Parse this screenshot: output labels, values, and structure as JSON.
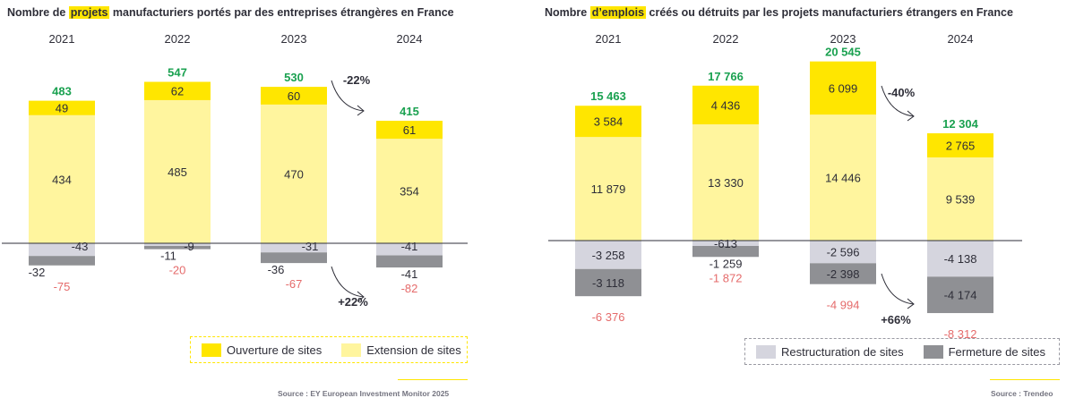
{
  "colors": {
    "ouverture": "#ffe600",
    "extension": "#fff59e",
    "restructuration": "#d5d5de",
    "fermeture": "#8f9094",
    "positive_total": "#1aa150",
    "negative_total": "#e56b6b",
    "text": "#2e2e38"
  },
  "left": {
    "title": {
      "pre": "Nombre de ",
      "highlight": "projets",
      "post": " manufacturiers portés par des entreprises étrangères en France"
    },
    "legend": {
      "ouverture": "Ouverture de sites",
      "extension": "Extension de sites"
    },
    "source": "Source : EY European Investment Monitor 2025"
  },
  "right": {
    "title": {
      "pre": "Nombre ",
      "highlight": "d’emplois",
      "post": " créés ou détruits par les projets manufacturiers étrangers en France"
    },
    "legend": {
      "restructuration": "Restructuration de sites",
      "fermeture": "Fermeture de sites"
    },
    "source": "Source : Trendeo"
  },
  "chart_data": [
    {
      "type": "bar",
      "title": "Nombre de projets manufacturiers portés par des entreprises étrangères en France",
      "categories": [
        "2021",
        "2022",
        "2023",
        "2024"
      ],
      "series": [
        {
          "name": "Ouverture de sites",
          "values": [
            49,
            62,
            60,
            61
          ],
          "labels": [
            "49",
            "62",
            "60",
            "61"
          ]
        },
        {
          "name": "Extension de sites",
          "values": [
            434,
            485,
            470,
            354
          ],
          "labels": [
            "434",
            "485",
            "470",
            "354"
          ]
        },
        {
          "name": "Restructuration de sites",
          "values": [
            -43,
            -9,
            -31,
            -41
          ],
          "labels": [
            "-43",
            "-9",
            "-31",
            "-41"
          ]
        },
        {
          "name": "Fermeture de sites",
          "values": [
            -32,
            -11,
            -36,
            -41
          ],
          "labels": [
            "-32",
            "-11",
            "-36",
            "-41"
          ]
        }
      ],
      "positive_totals": [
        "483",
        "547",
        "530",
        "415"
      ],
      "negative_totals": [
        "-75",
        "-20",
        "-67",
        "-82"
      ],
      "annotations": {
        "positive_change": "-22%",
        "negative_change": "+22%"
      }
    },
    {
      "type": "bar",
      "title": "Nombre d’emplois créés ou détruits par les projets manufacturiers étrangers en France",
      "categories": [
        "2021",
        "2022",
        "2023",
        "2024"
      ],
      "series": [
        {
          "name": "Ouverture de sites",
          "values": [
            3584,
            4436,
            6099,
            2765
          ],
          "labels": [
            "3 584",
            "4 436",
            "6 099",
            "2 765"
          ]
        },
        {
          "name": "Extension de sites",
          "values": [
            11879,
            13330,
            14446,
            9539
          ],
          "labels": [
            "11 879",
            "13 330",
            "14 446",
            "9 539"
          ]
        },
        {
          "name": "Restructuration de sites",
          "values": [
            -3258,
            -613,
            -2596,
            -4138
          ],
          "labels": [
            "-3 258",
            "-613",
            "-2 596",
            "-4 138"
          ]
        },
        {
          "name": "Fermeture de sites",
          "values": [
            -3118,
            -1259,
            -2398,
            -4174
          ],
          "labels": [
            "-3 118",
            "-1 259",
            "-2 398",
            "-4 174"
          ]
        }
      ],
      "positive_totals": [
        "15 463",
        "17 766",
        "20 545",
        "12 304"
      ],
      "negative_totals": [
        "-6 376",
        "-1 872",
        "-4 994",
        "-8 312"
      ],
      "annotations": {
        "positive_change": "-40%",
        "negative_change": "+66%"
      }
    }
  ]
}
